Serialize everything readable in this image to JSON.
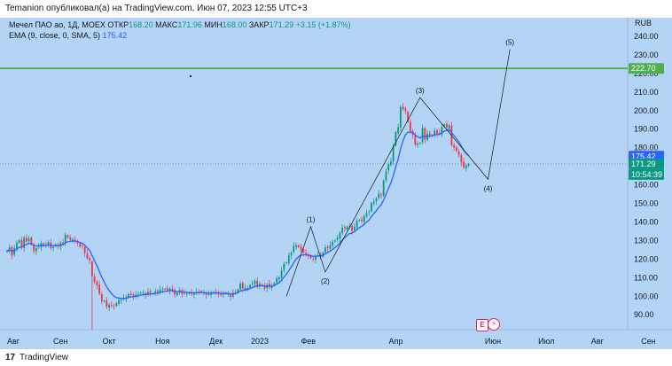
{
  "header": {
    "publisher": "Temanion опубликовал(а) на TradingView.com, Июн 07, 2023 12:55 UTC+3"
  },
  "legend": {
    "symbol": "Мечел ПАО ао, 1Д, MOEX",
    "open_label": "ОТКР",
    "open": "168.20",
    "high_label": "МАКС",
    "high": "171.96",
    "low_label": "МИН",
    "low": "168.00",
    "close_label": "ЗАКР",
    "close": "171.29",
    "change": "+3.15 (+1.87%)",
    "ema_label": "EMA (9, close, 0, SMA, 5)",
    "ema_value": "175.42"
  },
  "axis": {
    "currency": "RUB",
    "price_labels": [
      "240.00",
      "230.00",
      "220.00",
      "210.00",
      "200.00",
      "190.00",
      "180.00",
      "170.00",
      "160.00",
      "150.00",
      "140.00",
      "130.00",
      "120.00",
      "110.00",
      "100.00",
      "90.00"
    ],
    "time_labels": [
      "Авг",
      "Сен",
      "Окт",
      "Ноя",
      "Дек",
      "2023",
      "Фев",
      "Апр",
      "Июн",
      "Июл",
      "Авг",
      "Сен"
    ],
    "tag_hline": "222.70",
    "tag_ema": "175.42",
    "tag_close": "171.29",
    "tag_timer": "10:54:39"
  },
  "footer": {
    "logo": "17",
    "brand": "TradingView"
  },
  "badges": {
    "e": "E",
    "flash": "⚡"
  },
  "chart_data": {
    "type": "candlestick",
    "ylim": [
      82,
      250
    ],
    "yunit": "RUB",
    "x_axis": "trading days, Aug 2022 – Jun 2023",
    "horizontal_line": 222.7,
    "colors": {
      "up": "#089981",
      "down": "#f23645",
      "ema": "#2962ff",
      "hline": "#4caf50",
      "wave": "#131722"
    },
    "ema_current": 175.42,
    "close": [
      124.5,
      126.3,
      121.9,
      125.8,
      128.9,
      130.1,
      126.4,
      131.6,
      129.5,
      131.2,
      127.6,
      124.2,
      126,
      126.7,
      128.7,
      126.9,
      127.8,
      129.2,
      125.9,
      126.6,
      127.9,
      126.8,
      128.8,
      128.1,
      133.1,
      131.6,
      130.5,
      130.8,
      129.4,
      128.6,
      126.7,
      126.8,
      123.2,
      120.4,
      119.1,
      110.8,
      107.7,
      105.8,
      101.4,
      97.4,
      97.5,
      94.4,
      95.4,
      94.7,
      94.4,
      96.3,
      97.9,
      98.2,
      98.9,
      99.4,
      101.2,
      100.7,
      100.1,
      100.9,
      101.3,
      102,
      101.8,
      100.6,
      102.4,
      101.6,
      101.5,
      102.6,
      102.3,
      103.6,
      103.8,
      103.9,
      103.3,
      104,
      103,
      100.9,
      102.1,
      103.2,
      101.2,
      101.6,
      101.4,
      101.9,
      101.3,
      101.6,
      102.3,
      102.4,
      102,
      101.8,
      100.8,
      101.1,
      101.9,
      102.2,
      101.9,
      101.5,
      100.7,
      101.7,
      101.4,
      101.3,
      99.6,
      101.9,
      102.3,
      103.7,
      106.8,
      104.1,
      104.5,
      104.5,
      106.1,
      106.9,
      108.3,
      105.1,
      106.8,
      105.9,
      104.2,
      106.3,
      104.8,
      105.7,
      107.1,
      109.6,
      110.1,
      113.9,
      117.3,
      118.1,
      121.9,
      123.6,
      127.1,
      127.6,
      126.5,
      124.9,
      123.6,
      122.3,
      121.6,
      120.6,
      119.9,
      121.9,
      122.1,
      121.6,
      123.6,
      126.3,
      126,
      127.5,
      129.3,
      130,
      131.4,
      134.1,
      136.8,
      136.4,
      137.5,
      137.8,
      135.2,
      137.3,
      140.7,
      141,
      140.5,
      143.2,
      144.8,
      145.3,
      150.2,
      151,
      152.6,
      155.2,
      154.3,
      162.3,
      167.3,
      171.1,
      172.6,
      180.8,
      188.3,
      191,
      201.9,
      200.7,
      199.6,
      193.9,
      188.8,
      186.9,
      181.7,
      182.2,
      182.5,
      190.7,
      184.3,
      187.5,
      186.7,
      186.8,
      189.2,
      187.6,
      187.6,
      191.3,
      192.6,
      190.9,
      192.1,
      181.3,
      180,
      178.2,
      176,
      172.1,
      169.4,
      170.3,
      171.3
    ],
    "waves": [
      {
        "label": "(1)",
        "price": 137.5
      },
      {
        "label": "(2)",
        "price": 113.0
      },
      {
        "label": "(3)",
        "price": 207.0
      },
      {
        "label": "(4)",
        "price": 163.0
      },
      {
        "label": "(5)",
        "price": 233.0
      }
    ]
  }
}
